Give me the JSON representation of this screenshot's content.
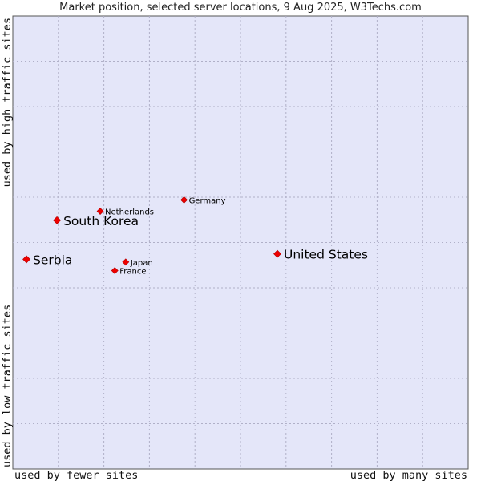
{
  "chart_data": {
    "type": "scatter",
    "title": "Market position, selected server locations, 9 Aug 2025, W3Techs.com",
    "xlabel_left": "used by fewer sites",
    "xlabel_right": "used by many sites",
    "ylabel_top": "used by high traffic sites",
    "ylabel_bottom": "used by low traffic sites",
    "xlim": [
      0,
      10
    ],
    "ylim": [
      0,
      10
    ],
    "grid": true,
    "marker_color": "#ee0000",
    "background_color": "#e4e6f9",
    "grid_color": "#b0b0c8",
    "points": [
      {
        "name": "United States",
        "x": 5.81,
        "y": 4.75,
        "size": "large"
      },
      {
        "name": "Serbia",
        "x": 0.3,
        "y": 4.63,
        "size": "large"
      },
      {
        "name": "South Korea",
        "x": 0.97,
        "y": 5.49,
        "size": "large"
      },
      {
        "name": "Netherlands",
        "x": 1.92,
        "y": 5.69,
        "size": "small"
      },
      {
        "name": "Germany",
        "x": 3.76,
        "y": 5.94,
        "size": "small"
      },
      {
        "name": "Japan",
        "x": 2.48,
        "y": 4.57,
        "size": "small"
      },
      {
        "name": "France",
        "x": 2.24,
        "y": 4.38,
        "size": "small"
      }
    ]
  }
}
